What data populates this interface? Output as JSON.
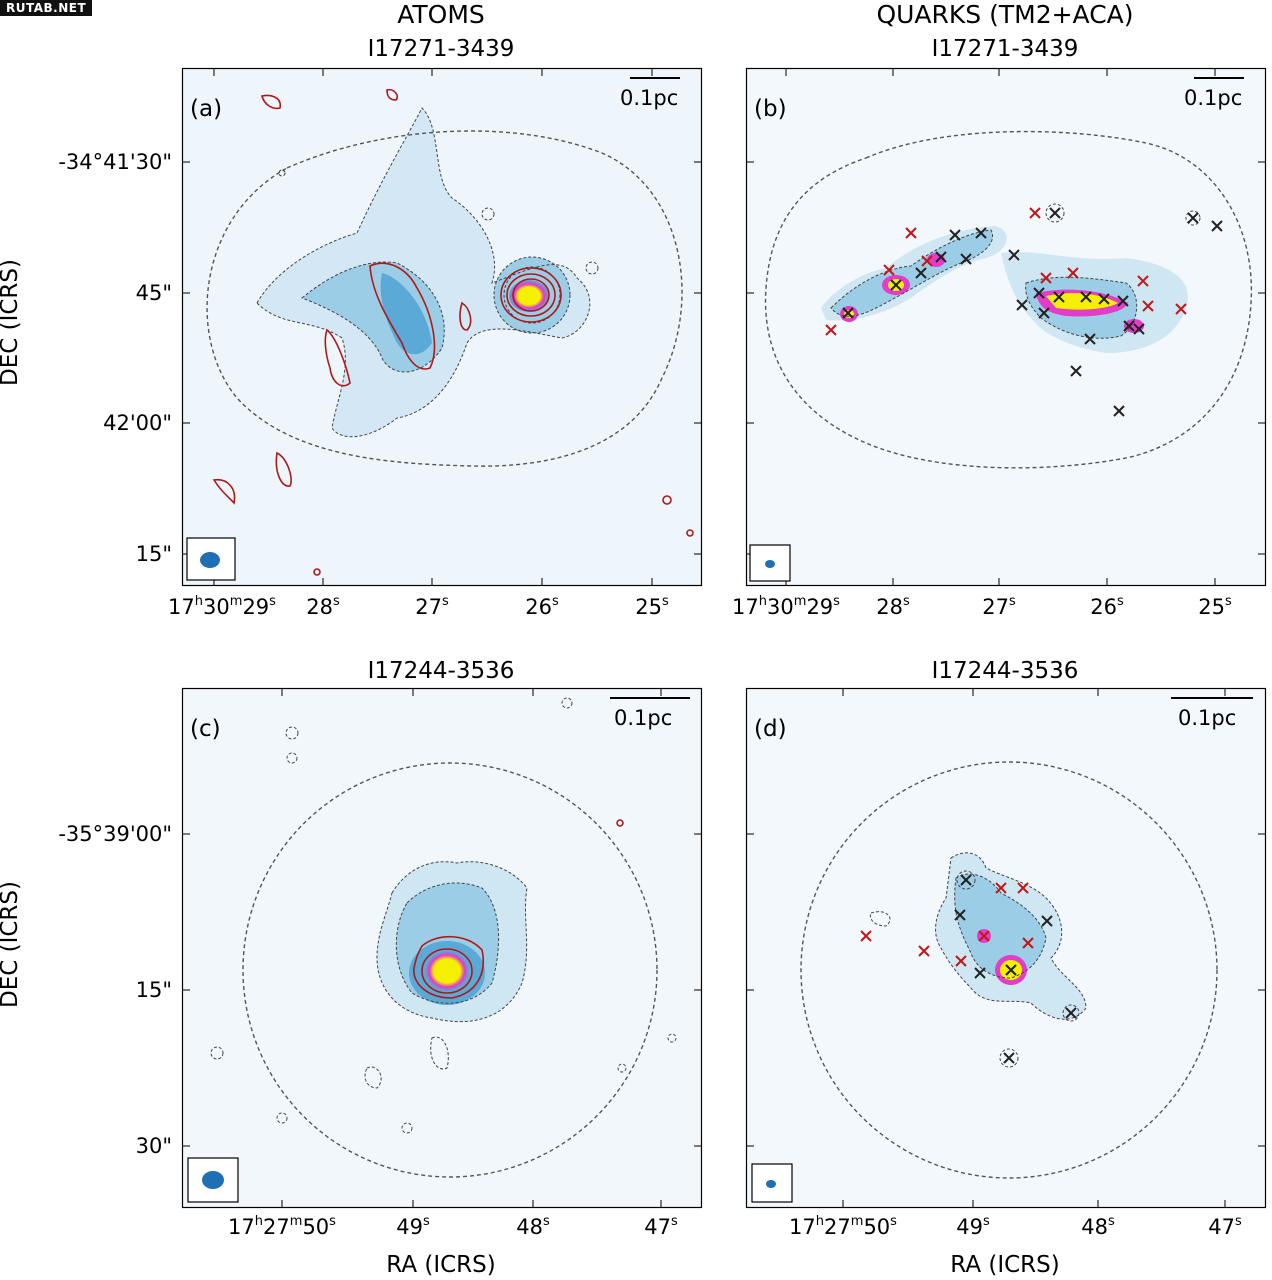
{
  "site_badge": "RUTAB.NET",
  "columns": {
    "left": "ATOMS",
    "right": "QUARKS (TM2+ACA)"
  },
  "panels": [
    {
      "label": "(a)",
      "source": "I17271-3439",
      "scalebar": "0.1pc"
    },
    {
      "label": "(b)",
      "source": "I17271-3439",
      "scalebar": "0.1pc"
    },
    {
      "label": "(c)",
      "source": "I17244-3536",
      "scalebar": "0.1pc"
    },
    {
      "label": "(d)",
      "source": "I17244-3536",
      "scalebar": "0.1pc"
    }
  ],
  "axes": {
    "ylabel": "DEC (ICRS)",
    "xlabel": "RA (ICRS)",
    "top_yticks": [
      "-34°41'30\"",
      "45\"",
      "42'00\"",
      "15\""
    ],
    "top_xticks": [
      {
        "pre": "17",
        "h": "h",
        "mid": "30",
        "m": "m",
        "val": "29",
        "s": "s"
      },
      {
        "val": "28",
        "s": "s"
      },
      {
        "val": "27",
        "s": "s"
      },
      {
        "val": "26",
        "s": "s"
      },
      {
        "val": "25",
        "s": "s"
      }
    ],
    "bottom_yticks": [
      "-35°39'00\"",
      "15\"",
      "30\""
    ],
    "bottom_xticks": [
      {
        "pre": "17",
        "h": "h",
        "mid": "27",
        "m": "m",
        "val": "50",
        "s": "s"
      },
      {
        "val": "49",
        "s": "s"
      },
      {
        "val": "48",
        "s": "s"
      },
      {
        "val": "47",
        "s": "s"
      }
    ]
  },
  "colors": {
    "emission_faint": "#dcedf7",
    "emission_mid": "#9ccde6",
    "emission_strong": "#5aa9d6",
    "peak_magenta": "#e23cc8",
    "peak_yellow": "#f5f000",
    "contour_gray": "#444444",
    "contour_red": "#b01818",
    "marker_red": "#c01818",
    "marker_black": "#222222",
    "beam": "#1f6fb5"
  },
  "icons": {
    "core_marker": "x-mark-icon",
    "beam": "beam-ellipse-icon",
    "scalebar": "scale-bar-icon"
  }
}
